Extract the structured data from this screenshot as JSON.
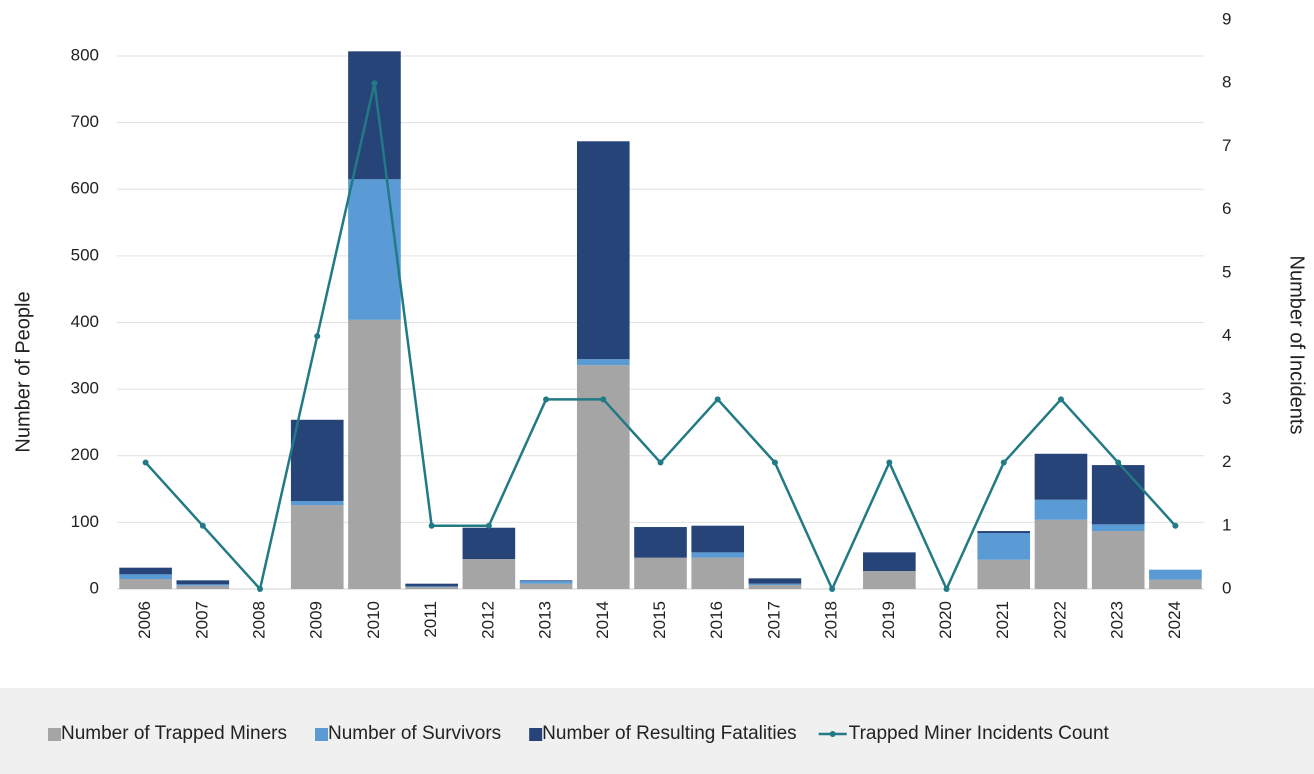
{
  "chart_data": {
    "type": "bar",
    "categories": [
      "2006",
      "2007",
      "2008",
      "2009",
      "2010",
      "2011",
      "2012",
      "2013",
      "2014",
      "2015",
      "2016",
      "2017",
      "2018",
      "2019",
      "2020",
      "2021",
      "2022",
      "2023",
      "2024"
    ],
    "series": [
      {
        "name": "Number of Trapped Miners",
        "color": "#a5a5a5",
        "values": [
          15,
          5,
          0,
          126,
          404,
          3,
          45,
          8,
          336,
          47,
          47,
          6,
          0,
          27,
          0,
          44,
          104,
          87,
          14
        ]
      },
      {
        "name": "Number of Survivors",
        "color": "#5b9bd5",
        "values": [
          7,
          2,
          0,
          6,
          211,
          1,
          0,
          4,
          9,
          0,
          8,
          2,
          0,
          0,
          0,
          40,
          30,
          10,
          15
        ]
      },
      {
        "name": "Number of Resulting Fatalities",
        "color": "#264478",
        "values": [
          10,
          6,
          0,
          122,
          192,
          4,
          47,
          1,
          327,
          46,
          40,
          8,
          0,
          28,
          0,
          3,
          69,
          89,
          0
        ]
      },
      {
        "name": "Trapped Miner Incidents Count",
        "color": "#217a84",
        "type": "line",
        "axis": "y2",
        "values": [
          2,
          1,
          0,
          4,
          8,
          1,
          1,
          3,
          3,
          2,
          3,
          2,
          0,
          2,
          0,
          2,
          3,
          2,
          1
        ]
      }
    ],
    "stacked": true,
    "ylabel": "Number of People",
    "y2label": "Number of Incidents",
    "ylim": [
      0,
      800
    ],
    "yticks": [
      0,
      100,
      200,
      300,
      400,
      500,
      600,
      700,
      800
    ],
    "y2lim": [
      0,
      9
    ],
    "y2ticks": [
      0,
      1,
      2,
      3,
      4,
      5,
      6,
      7,
      8,
      9
    ],
    "grid": true,
    "legend": "bottom"
  }
}
